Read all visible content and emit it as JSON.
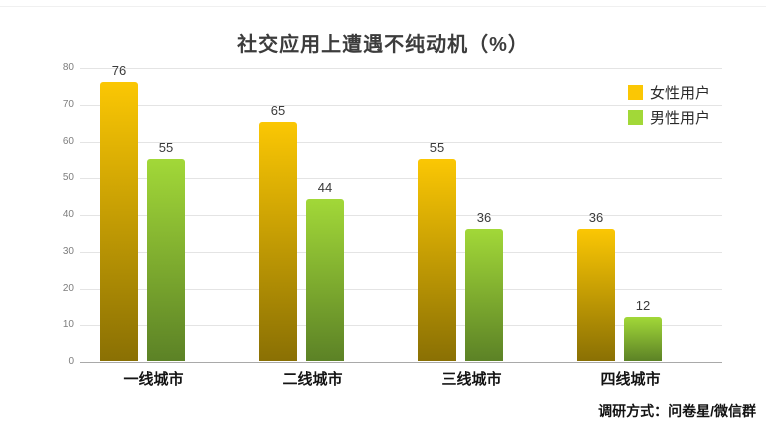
{
  "chart_data": {
    "type": "bar",
    "title": "社交应用上遭遇不纯动机（%）",
    "categories": [
      "一线城市",
      "二线城市",
      "三线城市",
      "四线城市"
    ],
    "series": [
      {
        "name": "女性用户",
        "values": [
          76,
          65,
          55,
          36
        ],
        "color_top": "#fbc704",
        "color_bottom": "#8a7004"
      },
      {
        "name": "男性用户",
        "values": [
          55,
          44,
          36,
          12
        ],
        "color_top": "#a2d838",
        "color_bottom": "#5c8226"
      }
    ],
    "ylim": [
      0,
      80
    ],
    "yticks": [
      0,
      10,
      20,
      30,
      40,
      50,
      60,
      70,
      80
    ],
    "grid": "horizontal",
    "legend_position": "right",
    "source": "调研方式：问卷星/微信群"
  },
  "colors": {
    "gridline": "#e4e4e4",
    "axis_line": "#a9a9a9",
    "title_text": "#3c3c3c",
    "tick_text": "#7d7d7d"
  }
}
